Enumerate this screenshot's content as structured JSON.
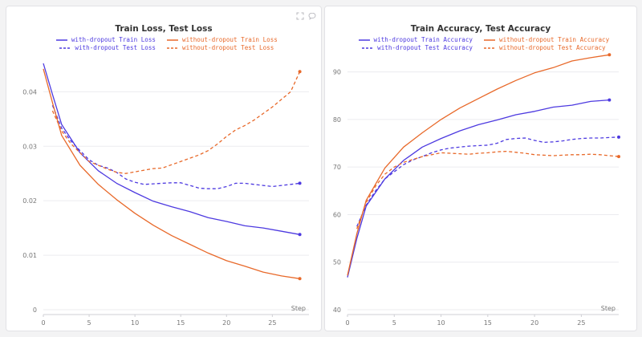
{
  "icons": {
    "expand": "expand-icon",
    "comment": "comment-icon"
  },
  "colors": {
    "with_dropout": "#4d3ae0",
    "without_dropout": "#e8692a",
    "grid": "#ececef",
    "axis_text": "#777777"
  },
  "chart_data": [
    {
      "type": "line",
      "title": "Train Loss, Test Loss",
      "xlabel": "Step",
      "ylabel": "",
      "xlim": [
        0,
        29
      ],
      "ylim": [
        0,
        0.048
      ],
      "xticks": [
        0,
        5,
        10,
        15,
        20,
        25
      ],
      "yticks": [
        0,
        0.01,
        0.02,
        0.03,
        0.04
      ],
      "ytick_labels": [
        "0",
        "0.01",
        "0.02",
        "0.03",
        "0.04"
      ],
      "legend_position": "top-center",
      "series": [
        {
          "name": "with-dropout Train Loss",
          "color": "#4d3ae0",
          "dash": "solid",
          "x": [
            0,
            1,
            2,
            4,
            6,
            8,
            10,
            12,
            14,
            16,
            18,
            20,
            22,
            24,
            26,
            28
          ],
          "y": [
            0.0452,
            0.0395,
            0.034,
            0.0288,
            0.0255,
            0.0232,
            0.0215,
            0.0199,
            0.0189,
            0.018,
            0.0169,
            0.0162,
            0.0154,
            0.015,
            0.0144,
            0.0138
          ]
        },
        {
          "name": "with-dropout Test Loss",
          "color": "#4d3ae0",
          "dash": "dashed",
          "x": [
            1,
            2,
            3,
            4,
            5,
            6,
            7,
            8,
            9,
            10,
            11,
            12,
            13,
            14,
            15,
            16,
            17,
            18,
            19,
            20,
            21,
            22,
            23,
            24,
            25,
            26,
            27,
            28
          ],
          "y": [
            0.0375,
            0.0333,
            0.031,
            0.0292,
            0.0275,
            0.0265,
            0.026,
            0.0252,
            0.024,
            0.0234,
            0.023,
            0.0231,
            0.0232,
            0.0233,
            0.0233,
            0.0228,
            0.0223,
            0.0222,
            0.0222,
            0.0226,
            0.0232,
            0.0232,
            0.023,
            0.0228,
            0.0226,
            0.0228,
            0.023,
            0.0232
          ]
        },
        {
          "name": "without-dropout Train Loss",
          "color": "#e8692a",
          "dash": "solid",
          "x": [
            0,
            1,
            2,
            4,
            6,
            8,
            10,
            12,
            14,
            16,
            18,
            20,
            22,
            24,
            26,
            28
          ],
          "y": [
            0.0442,
            0.038,
            0.032,
            0.0265,
            0.023,
            0.0202,
            0.0177,
            0.0155,
            0.0136,
            0.012,
            0.0104,
            0.009,
            0.008,
            0.0069,
            0.0062,
            0.0057
          ]
        },
        {
          "name": "without-dropout Test Loss",
          "color": "#e8692a",
          "dash": "dashed",
          "x": [
            1,
            2,
            3,
            4,
            5,
            6,
            7,
            8,
            9,
            10,
            11,
            12,
            13,
            14,
            15,
            16,
            17,
            18,
            19,
            20,
            21,
            22,
            23,
            24,
            25,
            26,
            27,
            28
          ],
          "y": [
            0.0365,
            0.0328,
            0.0305,
            0.0288,
            0.0272,
            0.0265,
            0.0258,
            0.0252,
            0.025,
            0.0253,
            0.0256,
            0.0259,
            0.026,
            0.0266,
            0.0272,
            0.0278,
            0.0284,
            0.0292,
            0.0304,
            0.0318,
            0.033,
            0.0338,
            0.0348,
            0.036,
            0.0372,
            0.0386,
            0.04,
            0.0437
          ]
        }
      ]
    },
    {
      "type": "line",
      "title": "Train Accuracy, Test Accuracy",
      "xlabel": "Step",
      "ylabel": "",
      "xlim": [
        0,
        29
      ],
      "ylim": [
        40,
        95
      ],
      "xticks": [
        0,
        5,
        10,
        15,
        20,
        25
      ],
      "yticks": [
        40,
        50,
        60,
        70,
        80,
        90
      ],
      "ytick_labels": [
        "40",
        "50",
        "60",
        "70",
        "80",
        "90"
      ],
      "legend_position": "top-center",
      "series": [
        {
          "name": "with-dropout Train Accuracy",
          "color": "#4d3ae0",
          "dash": "solid",
          "x": [
            0,
            1,
            2,
            4,
            6,
            8,
            10,
            12,
            14,
            16,
            18,
            20,
            22,
            24,
            26,
            28
          ],
          "y": [
            46.8,
            55.0,
            61.8,
            67.5,
            71.4,
            74.2,
            76.0,
            77.6,
            78.9,
            79.9,
            81.0,
            81.7,
            82.6,
            83.0,
            83.8,
            84.1
          ]
        },
        {
          "name": "with-dropout Test Accuracy",
          "color": "#4d3ae0",
          "dash": "dashed",
          "x": [
            1,
            2,
            3,
            4,
            5,
            6,
            7,
            8,
            9,
            10,
            11,
            12,
            13,
            14,
            15,
            16,
            17,
            18,
            19,
            20,
            21,
            22,
            23,
            24,
            25,
            26,
            27,
            28,
            29
          ],
          "y": [
            57.5,
            62.0,
            65.0,
            67.5,
            69.0,
            70.5,
            71.5,
            72.2,
            73.0,
            73.6,
            74.0,
            74.2,
            74.4,
            74.5,
            74.6,
            75.0,
            75.8,
            76.0,
            76.1,
            75.6,
            75.2,
            75.3,
            75.5,
            75.8,
            76.0,
            76.1,
            76.1,
            76.2,
            76.3
          ]
        },
        {
          "name": "without-dropout Train Accuracy",
          "color": "#e8692a",
          "dash": "solid",
          "x": [
            0,
            1,
            2,
            4,
            6,
            8,
            10,
            12,
            14,
            16,
            18,
            20,
            22,
            24,
            26,
            28
          ],
          "y": [
            47.2,
            56.0,
            63.0,
            69.8,
            74.2,
            77.2,
            80.0,
            82.4,
            84.4,
            86.4,
            88.2,
            89.8,
            90.9,
            92.3,
            93.0,
            93.6
          ]
        },
        {
          "name": "without-dropout Test Accuracy",
          "color": "#e8692a",
          "dash": "dashed",
          "x": [
            1,
            2,
            3,
            4,
            5,
            6,
            7,
            8,
            9,
            10,
            11,
            12,
            13,
            14,
            15,
            16,
            17,
            18,
            19,
            20,
            21,
            22,
            23,
            24,
            25,
            26,
            27,
            28,
            29
          ],
          "y": [
            57.0,
            62.5,
            66.0,
            68.5,
            70.0,
            71.0,
            71.6,
            72.2,
            72.6,
            73.0,
            72.9,
            72.8,
            72.7,
            72.9,
            73.0,
            73.2,
            73.3,
            73.1,
            72.9,
            72.6,
            72.5,
            72.4,
            72.5,
            72.6,
            72.6,
            72.7,
            72.6,
            72.4,
            72.2
          ]
        }
      ]
    }
  ]
}
